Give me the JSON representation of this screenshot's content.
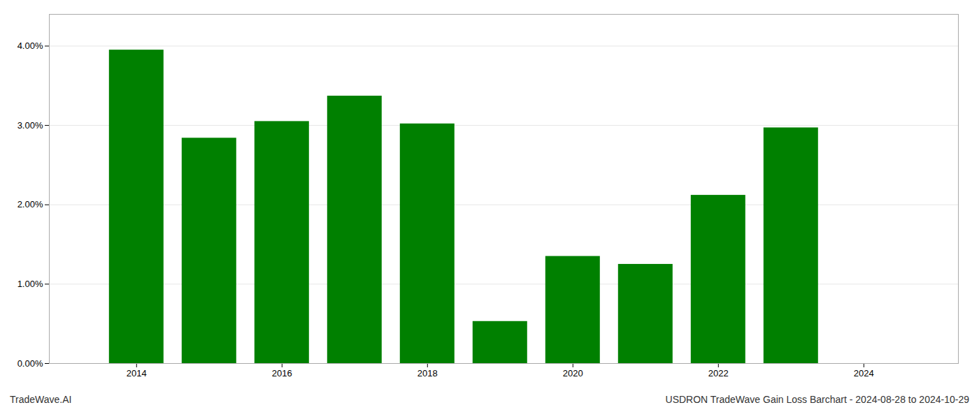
{
  "chart_data": {
    "type": "bar",
    "x": [
      2014,
      2015,
      2016,
      2017,
      2018,
      2019,
      2020,
      2021,
      2022,
      2023
    ],
    "values": [
      0.0395,
      0.0284,
      0.0305,
      0.0337,
      0.0302,
      0.0053,
      0.0135,
      0.0125,
      0.0212,
      0.0297
    ],
    "color": "#008000",
    "xlim": [
      2012.8,
      2025.3
    ],
    "xticks": [
      2014,
      2016,
      2018,
      2020,
      2022,
      2024
    ],
    "ylim": [
      0,
      0.044
    ],
    "yticks": [
      {
        "value": 0,
        "label": "0.00%"
      },
      {
        "value": 0.01,
        "label": "1.00%"
      },
      {
        "value": 0.02,
        "label": "2.00%"
      },
      {
        "value": 0.03,
        "label": "3.00%"
      },
      {
        "value": 0.04,
        "label": "4.00%"
      }
    ],
    "grid": true,
    "annotations": [
      "TradeWave.AI",
      "USDRON TradeWave Gain Loss Barchart - 2024-08-28 to 2024-10-29"
    ]
  }
}
